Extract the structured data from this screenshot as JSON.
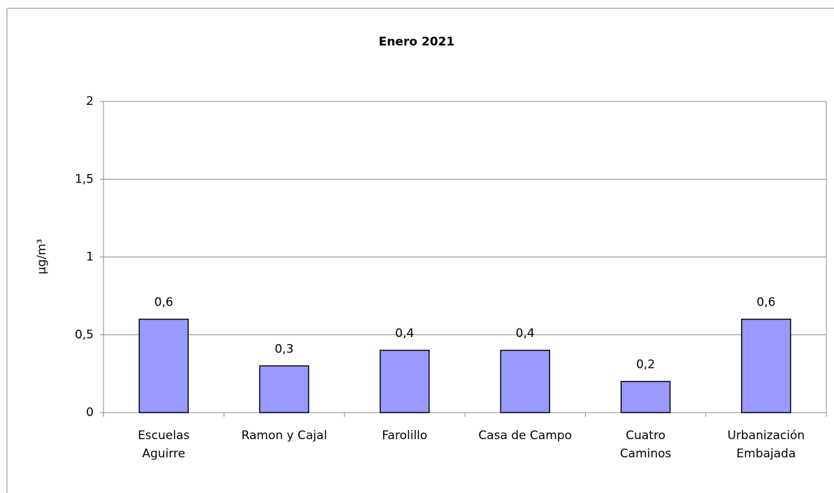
{
  "chart_data": {
    "type": "bar",
    "title": "Enero 2021",
    "ylabel": "µg/m³",
    "categories": [
      "Escuelas\nAguirre",
      "Ramon y Cajal",
      "Farolillo",
      "Casa de Campo",
      "Cuatro\nCaminos",
      "Urbanización\nEmbajada"
    ],
    "values": [
      0.6,
      0.3,
      0.4,
      0.4,
      0.2,
      0.6
    ],
    "value_labels": [
      "0,6",
      "0,3",
      "0,4",
      "0,4",
      "0,2",
      "0,6"
    ],
    "color": "#9999ff",
    "ylim": [
      0,
      2
    ],
    "yticks": [
      0,
      {
        "value": 0.5,
        "label": "0,5"
      },
      1,
      {
        "value": 1.5,
        "label": "1,5"
      },
      2
    ],
    "grid": true
  }
}
